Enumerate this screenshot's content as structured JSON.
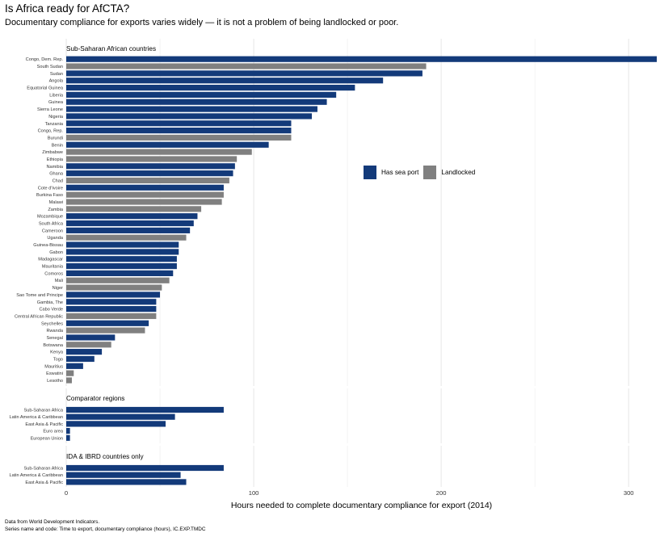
{
  "title": "Is Africa ready for AfCTA?",
  "subtitle": "Documentary compliance for exports varies widely — it is not a problem of being landlocked or poor.",
  "caption": [
    "Data from World Development Indicators.",
    "Series name and code: Time to export, documentary compliance (hours), IC.EXP.TMDC"
  ],
  "colors": {
    "sea": "#133a7a",
    "landlocked": "#808080",
    "grid": "#e6e6e6"
  },
  "legend": [
    {
      "key": "sea",
      "label": "Has sea port"
    },
    {
      "key": "landlocked",
      "label": "Landlocked"
    }
  ],
  "chart_data": {
    "type": "bar",
    "orientation": "horizontal",
    "xlabel": "Hours needed to complete documentary compliance for export (2014)",
    "xlim": [
      0,
      315
    ],
    "xticks": [
      0,
      100,
      200,
      300
    ],
    "grid": true,
    "legend_position": "right",
    "panels": [
      {
        "title": "Sub-Saharan African countries",
        "bars": [
          {
            "label": "Congo, Dem. Rep.",
            "value": 315,
            "group": "sea"
          },
          {
            "label": "South Sudan",
            "value": 192,
            "group": "landlocked"
          },
          {
            "label": "Sudan",
            "value": 190,
            "group": "sea"
          },
          {
            "label": "Angola",
            "value": 169,
            "group": "sea"
          },
          {
            "label": "Equatorial Guinea",
            "value": 154,
            "group": "sea"
          },
          {
            "label": "Liberia",
            "value": 144,
            "group": "sea"
          },
          {
            "label": "Guinea",
            "value": 139,
            "group": "sea"
          },
          {
            "label": "Sierra Leone",
            "value": 134,
            "group": "sea"
          },
          {
            "label": "Nigeria",
            "value": 131,
            "group": "sea"
          },
          {
            "label": "Tanzania",
            "value": 120,
            "group": "sea"
          },
          {
            "label": "Congo, Rep.",
            "value": 120,
            "group": "sea"
          },
          {
            "label": "Burundi",
            "value": 120,
            "group": "landlocked"
          },
          {
            "label": "Benin",
            "value": 108,
            "group": "sea"
          },
          {
            "label": "Zimbabwe",
            "value": 99,
            "group": "landlocked"
          },
          {
            "label": "Ethiopia",
            "value": 91,
            "group": "landlocked"
          },
          {
            "label": "Namibia",
            "value": 90,
            "group": "sea"
          },
          {
            "label": "Ghana",
            "value": 89,
            "group": "sea"
          },
          {
            "label": "Chad",
            "value": 87,
            "group": "landlocked"
          },
          {
            "label": "Cote d'Ivoire",
            "value": 84,
            "group": "sea"
          },
          {
            "label": "Burkina Faso",
            "value": 84,
            "group": "landlocked"
          },
          {
            "label": "Malawi",
            "value": 83,
            "group": "landlocked"
          },
          {
            "label": "Zambia",
            "value": 72,
            "group": "landlocked"
          },
          {
            "label": "Mozambique",
            "value": 70,
            "group": "sea"
          },
          {
            "label": "South Africa",
            "value": 68,
            "group": "sea"
          },
          {
            "label": "Cameroon",
            "value": 66,
            "group": "sea"
          },
          {
            "label": "Uganda",
            "value": 64,
            "group": "landlocked"
          },
          {
            "label": "Guinea-Bissau",
            "value": 60,
            "group": "sea"
          },
          {
            "label": "Gabon",
            "value": 60,
            "group": "sea"
          },
          {
            "label": "Madagascar",
            "value": 59,
            "group": "sea"
          },
          {
            "label": "Mauritania",
            "value": 59,
            "group": "sea"
          },
          {
            "label": "Comoros",
            "value": 57,
            "group": "sea"
          },
          {
            "label": "Mali",
            "value": 55,
            "group": "landlocked"
          },
          {
            "label": "Niger",
            "value": 51,
            "group": "landlocked"
          },
          {
            "label": "Sao Tome and Principe",
            "value": 50,
            "group": "sea"
          },
          {
            "label": "Gambia, The",
            "value": 48,
            "group": "sea"
          },
          {
            "label": "Cabo Verde",
            "value": 48,
            "group": "sea"
          },
          {
            "label": "Central African Republic",
            "value": 48,
            "group": "landlocked"
          },
          {
            "label": "Seychelles",
            "value": 44,
            "group": "sea"
          },
          {
            "label": "Rwanda",
            "value": 42,
            "group": "landlocked"
          },
          {
            "label": "Senegal",
            "value": 26,
            "group": "sea"
          },
          {
            "label": "Botswana",
            "value": 24,
            "group": "landlocked"
          },
          {
            "label": "Kenya",
            "value": 19,
            "group": "sea"
          },
          {
            "label": "Togo",
            "value": 15,
            "group": "sea"
          },
          {
            "label": "Mauritius",
            "value": 9,
            "group": "sea"
          },
          {
            "label": "Eswatini",
            "value": 4,
            "group": "landlocked"
          },
          {
            "label": "Lesotho",
            "value": 3,
            "group": "landlocked"
          }
        ]
      },
      {
        "title": "Comparator regions",
        "bars": [
          {
            "label": "Sub-Saharan Africa",
            "value": 84,
            "group": "sea"
          },
          {
            "label": "Latin America & Caribbean",
            "value": 58,
            "group": "sea"
          },
          {
            "label": "East Asia & Pacific",
            "value": 53,
            "group": "sea"
          },
          {
            "label": "Euro area",
            "value": 2,
            "group": "sea"
          },
          {
            "label": "European Union",
            "value": 2,
            "group": "sea"
          }
        ]
      },
      {
        "title": "IDA & IBRD countries only",
        "bars": [
          {
            "label": "Sub-Saharan Africa",
            "value": 84,
            "group": "sea"
          },
          {
            "label": "Latin America & Caribbean",
            "value": 61,
            "group": "sea"
          },
          {
            "label": "East Asia & Pacific",
            "value": 64,
            "group": "sea"
          }
        ]
      }
    ]
  }
}
